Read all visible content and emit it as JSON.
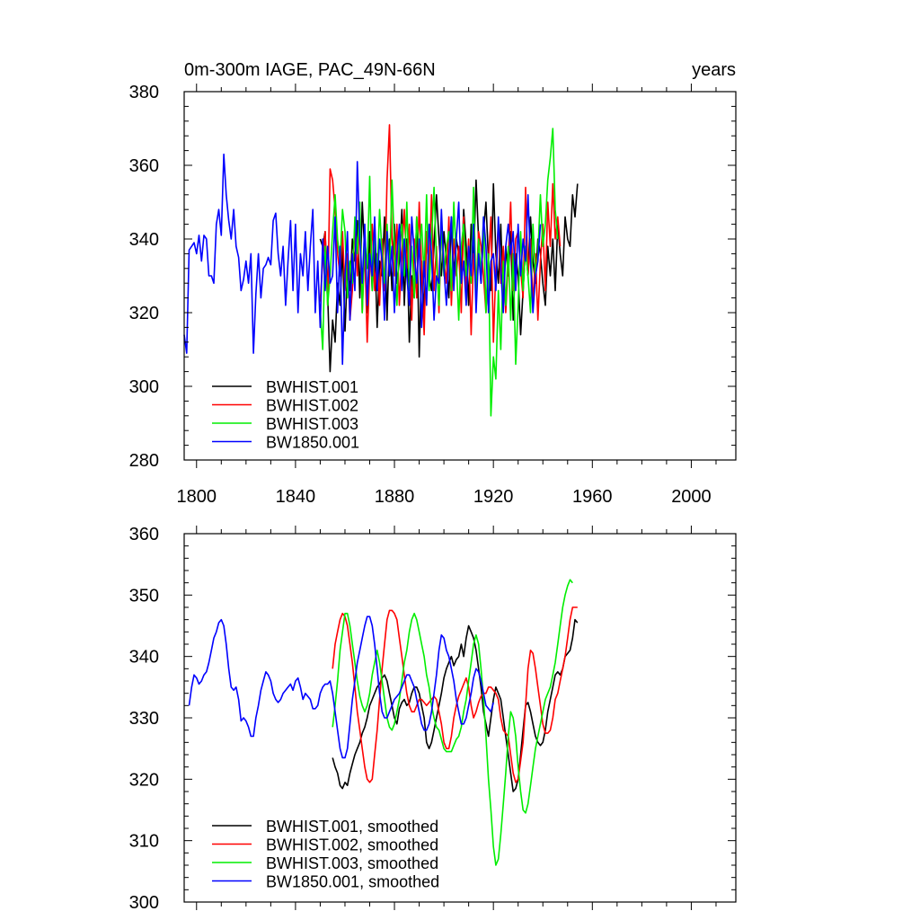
{
  "chart_data": [
    {
      "type": "line",
      "title_left": "0m-300m IAGE, PAC_49N-66N",
      "title_right": "years",
      "xlabel": "",
      "ylabel": "",
      "xlim": [
        1795,
        2018
      ],
      "ylim": [
        280,
        380
      ],
      "xticks": [
        1800,
        1840,
        1880,
        1920,
        1960,
        2000
      ],
      "yticks": [
        280,
        300,
        320,
        340,
        360,
        380
      ],
      "legend_position": "lower-left",
      "series": [
        {
          "name": "BWHIST.001",
          "color": "#000000",
          "x_start": 1850,
          "values": [
            340,
            338,
            342,
            325,
            304,
            318,
            312,
            328,
            322,
            338,
            315,
            332,
            326,
            340,
            334,
            345,
            324,
            350,
            336,
            320,
            342,
            326,
            338,
            316,
            334,
            330,
            346,
            318,
            340,
            326,
            344,
            328,
            334,
            348,
            322,
            340,
            312,
            330,
            324,
            346,
            308,
            334,
            320,
            342,
            330,
            326,
            338,
            352,
            340,
            330,
            342,
            334,
            324,
            346,
            330,
            340,
            336,
            328,
            348,
            338,
            322,
            344,
            334,
            356,
            340,
            328,
            342,
            350,
            334,
            326,
            355,
            336,
            328,
            344,
            322,
            338,
            330,
            342,
            318,
            336,
            330,
            314,
            326,
            338,
            330,
            346,
            334,
            328,
            340,
            336,
            328,
            322,
            338,
            330,
            340,
            326,
            344,
            336,
            330,
            346,
            340,
            338,
            352,
            346,
            355
          ]
        },
        {
          "name": "BWHIST.002",
          "color": "#ff0000",
          "x_start": 1850,
          "values": [
            323,
            334,
            342,
            322,
            359,
            356,
            348,
            336,
            330,
            342,
            326,
            336,
            318,
            326,
            344,
            330,
            348,
            320,
            338,
            312,
            332,
            344,
            326,
            336,
            322,
            340,
            326,
            356,
            371,
            340,
            330,
            344,
            322,
            336,
            348,
            332,
            344,
            318,
            340,
            324,
            350,
            332,
            314,
            342,
            330,
            352,
            326,
            338,
            320,
            344,
            334,
            328,
            346,
            322,
            340,
            330,
            338,
            320,
            346,
            326,
            340,
            314,
            336,
            326,
            342,
            338,
            330,
            320,
            334,
            346,
            312,
            332,
            344,
            328,
            338,
            320,
            334,
            350,
            326,
            340,
            342,
            332,
            324,
            354,
            330,
            340,
            322,
            336,
            318,
            334,
            344,
            326,
            350,
            338,
            355,
            340,
            346,
            338
          ]
        },
        {
          "name": "BWHIST.003",
          "color": "#00ee00",
          "x_start": 1850,
          "values": [
            321,
            310,
            338,
            322,
            330,
            342,
            352,
            340,
            334,
            348,
            342,
            324,
            334,
            328,
            346,
            336,
            350,
            320,
            340,
            332,
            357,
            326,
            342,
            330,
            348,
            336,
            328,
            344,
            330,
            356,
            338,
            322,
            340,
            344,
            330,
            350,
            326,
            338,
            324,
            346,
            336,
            344,
            330,
            352,
            326,
            340,
            354,
            334,
            322,
            344,
            330,
            338,
            342,
            326,
            350,
            334,
            318,
            338,
            344,
            330,
            336,
            328,
            354,
            324,
            340,
            330,
            346,
            320,
            336,
            292,
            308,
            302,
            326,
            310,
            334,
            322,
            338,
            318,
            336,
            306,
            322,
            342,
            326,
            338,
            330,
            320,
            344,
            330,
            336,
            352,
            338,
            344,
            356,
            362,
            370,
            348,
            340
          ]
        },
        {
          "name": "BW1850.001",
          "color": "#0000ff",
          "x_start": 1795,
          "values": [
            314,
            309,
            337,
            338,
            339,
            336,
            341,
            334,
            341,
            340,
            330,
            330,
            328,
            344,
            348,
            341,
            363,
            352,
            345,
            340,
            348,
            338,
            335,
            326,
            329,
            334,
            328,
            336,
            309,
            325,
            336,
            324,
            332,
            333,
            335,
            333,
            345,
            347,
            336,
            330,
            338,
            322,
            334,
            345,
            326,
            344,
            320,
            336,
            330,
            342,
            326,
            338,
            348,
            320,
            334,
            316,
            340,
            326,
            338,
            328,
            330,
            346,
            320,
            338,
            306,
            330,
            342,
            318,
            336,
            326,
            361,
            340,
            328,
            344,
            322,
            336,
            330,
            346,
            326,
            340,
            334,
            318,
            342,
            330,
            338,
            320,
            336,
            344,
            326,
            340,
            330,
            322,
            346,
            336,
            328,
            340,
            316,
            334,
            322,
            344,
            336,
            318,
            330,
            328,
            348,
            332,
            322,
            336,
            346,
            326,
            340,
            350,
            328,
            334,
            322,
            338,
            330,
            344,
            320,
            336,
            328,
            346,
            338,
            320,
            334,
            336,
            326,
            346,
            332,
            320,
            338,
            344,
            336,
            342,
            326,
            344,
            330,
            340,
            334,
            352,
            334,
            320,
            330,
            334,
            344
          ]
        }
      ]
    },
    {
      "type": "line",
      "title_left": "",
      "title_right": "",
      "xlabel": "",
      "ylabel": "",
      "xlim": [
        1795,
        2018
      ],
      "ylim": [
        300,
        360
      ],
      "xticks": [
        1800,
        1840,
        1880,
        1920,
        1960,
        2000
      ],
      "yticks": [
        300,
        310,
        320,
        330,
        340,
        350,
        360
      ],
      "legend_position": "lower-left",
      "series": [
        {
          "name": "BWHIST.001, smoothed",
          "color": "#000000",
          "x_start": 1855,
          "values": [
            323.5,
            322,
            321,
            319,
            318.5,
            319.5,
            319,
            321,
            322.5,
            324,
            325,
            326,
            327.5,
            328.5,
            330,
            332,
            333,
            334,
            335,
            335.5,
            336.5,
            337,
            336,
            334,
            332,
            330,
            329,
            331.5,
            332.5,
            333,
            332,
            332.5,
            334,
            335,
            335,
            334,
            332,
            330,
            326,
            325,
            326,
            328,
            330,
            332,
            334,
            336.5,
            338,
            339,
            340,
            338.5,
            339.5,
            340,
            342,
            340,
            343,
            345,
            344,
            343,
            341,
            338,
            335,
            331,
            329,
            327,
            330,
            333,
            335,
            334,
            333,
            330,
            327,
            324,
            321,
            318,
            318.5,
            320,
            324,
            328,
            332,
            332.5,
            331,
            329,
            327,
            326,
            325.5,
            326,
            328,
            331,
            333,
            335,
            337,
            337.5,
            337,
            338,
            340,
            340.5,
            341,
            343,
            346,
            345.5
          ]
        },
        {
          "name": "BWHIST.002, smoothed",
          "color": "#ff0000",
          "x_start": 1855,
          "values": [
            338,
            342,
            344,
            346,
            347,
            346.5,
            345,
            342,
            339,
            335,
            331,
            328,
            325,
            322,
            320,
            319.5,
            320,
            324,
            328,
            333,
            338,
            342,
            346,
            347.5,
            347.5,
            347,
            346,
            343,
            340,
            337,
            334,
            332,
            331,
            331,
            332,
            333,
            333,
            332.5,
            332,
            332.5,
            333,
            333.5,
            333,
            331,
            329,
            326,
            325,
            325,
            327,
            330,
            332,
            333.5,
            334.5,
            335.5,
            336.5,
            335,
            332,
            330,
            331,
            332.5,
            333.5,
            334,
            334,
            335,
            335,
            334.5,
            334,
            333,
            330,
            328,
            327.5,
            327,
            324,
            321,
            319.5,
            320,
            323,
            326,
            332,
            338,
            341,
            340.5,
            338,
            335,
            332,
            329,
            327.5,
            327.5,
            328,
            330,
            333,
            334,
            336,
            338,
            340,
            343,
            346,
            348,
            348,
            348
          ]
        },
        {
          "name": "BWHIST.003, smoothed",
          "color": "#00ee00",
          "x_start": 1855,
          "values": [
            328.5,
            332,
            336,
            341,
            344,
            347,
            347,
            345,
            342,
            339,
            336,
            333.5,
            332,
            331,
            332,
            334,
            337,
            339,
            341,
            339,
            336,
            333,
            330,
            328.5,
            328,
            329,
            331,
            333,
            336,
            339,
            341,
            344,
            346,
            347,
            346,
            344,
            342,
            340,
            337,
            335,
            332,
            330,
            328.5,
            328,
            326.5,
            325,
            324.5,
            324.5,
            324.5,
            325.5,
            326.5,
            327,
            328.5,
            331,
            333,
            336,
            339,
            342,
            343.5,
            342,
            338,
            333,
            327,
            320,
            315,
            309,
            306,
            307,
            311,
            316,
            321,
            327,
            331,
            330,
            327,
            322,
            318,
            315,
            314.5,
            316,
            319,
            322,
            325,
            327,
            329,
            331,
            333,
            334,
            335,
            337,
            339,
            342,
            345,
            348,
            350,
            351.5,
            352.5,
            352
          ]
        },
        {
          "name": "BW1850.001, smoothed",
          "color": "#0000ff",
          "x_start": 1797,
          "values": [
            332,
            335,
            337,
            336.5,
            335.5,
            336,
            337,
            337.5,
            339,
            341,
            343,
            344,
            345.5,
            346,
            345,
            342,
            338,
            335,
            334.5,
            335,
            333,
            329.5,
            330,
            329.5,
            328.5,
            327,
            327,
            330,
            332,
            334.5,
            336,
            337.5,
            337,
            336,
            334,
            333,
            332.5,
            333,
            334,
            334.5,
            335,
            335.5,
            334.5,
            336,
            336.5,
            335,
            333,
            334,
            333.5,
            333,
            331.5,
            331.5,
            332,
            334,
            335,
            335.5,
            335.5,
            336,
            334,
            331,
            328,
            325,
            323.5,
            323.5,
            325,
            329,
            333,
            336,
            339,
            341,
            343,
            345,
            346.5,
            346.5,
            345,
            342,
            338,
            334,
            331,
            330,
            330,
            331,
            332,
            333,
            333.5,
            334,
            335,
            336,
            337,
            337,
            336,
            335,
            333,
            331,
            329,
            328,
            328,
            329,
            331,
            334,
            337,
            341,
            343.5,
            343,
            341,
            340,
            338,
            336,
            333,
            331,
            329,
            329,
            330,
            332,
            334,
            336.5,
            338,
            337.5,
            336,
            334,
            332,
            331.5,
            331,
            332.5
          ]
        }
      ]
    }
  ]
}
